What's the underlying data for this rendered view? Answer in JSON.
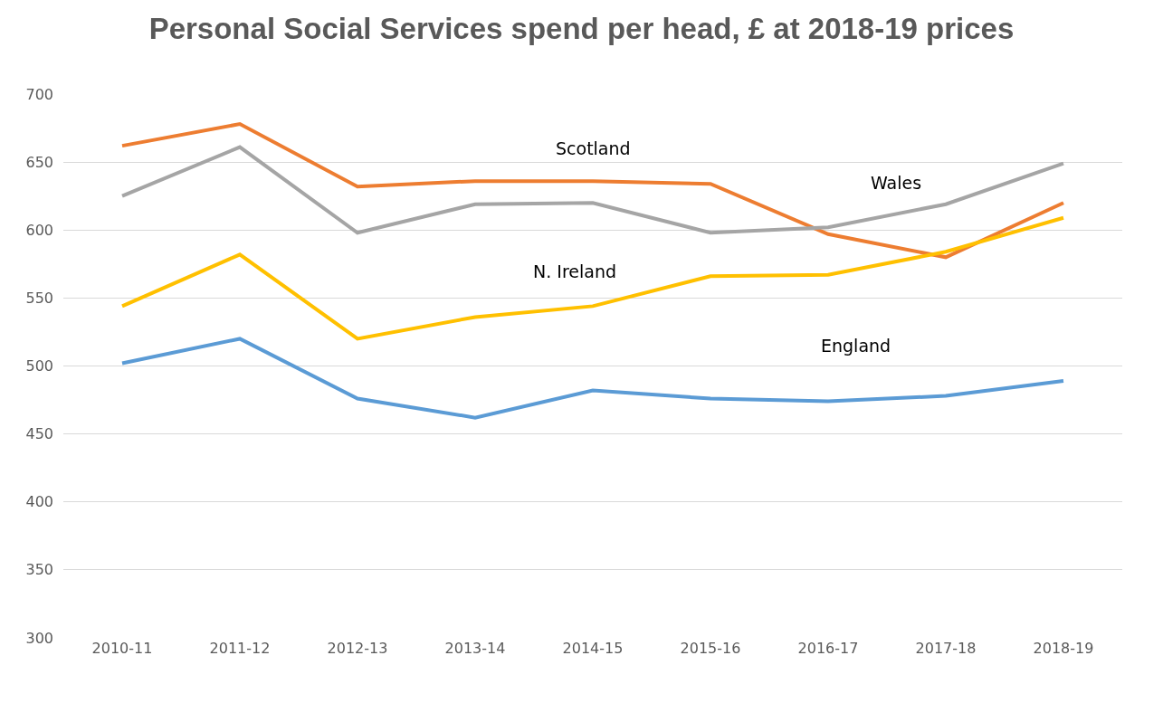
{
  "chart_data": {
    "type": "line",
    "title": "Personal Social Services spend per head, £ at 2018-19 prices",
    "categories": [
      "2010-11",
      "2011-12",
      "2012-13",
      "2013-14",
      "2014-15",
      "2015-16",
      "2016-17",
      "2017-18",
      "2018-19"
    ],
    "series": [
      {
        "name": "Scotland",
        "color": "#ed7d31",
        "values": [
          662,
          678,
          632,
          636,
          636,
          634,
          597,
          580,
          620
        ]
      },
      {
        "name": "Wales",
        "color": "#a5a5a5",
        "values": [
          625,
          661,
          598,
          619,
          620,
          598,
          602,
          619,
          649
        ]
      },
      {
        "name": "N. Ireland",
        "color": "#ffc000",
        "values": [
          544,
          582,
          520,
          536,
          544,
          566,
          567,
          584,
          609
        ]
      },
      {
        "name": "England",
        "color": "#5b9bd5",
        "values": [
          502,
          520,
          476,
          462,
          482,
          476,
          474,
          478,
          489
        ]
      }
    ],
    "ylim": [
      300,
      700
    ],
    "yticks": [
      300,
      350,
      400,
      450,
      500,
      550,
      600,
      650,
      700
    ],
    "grid": "y",
    "legend": false,
    "marker": "none",
    "line_style": "solid"
  }
}
